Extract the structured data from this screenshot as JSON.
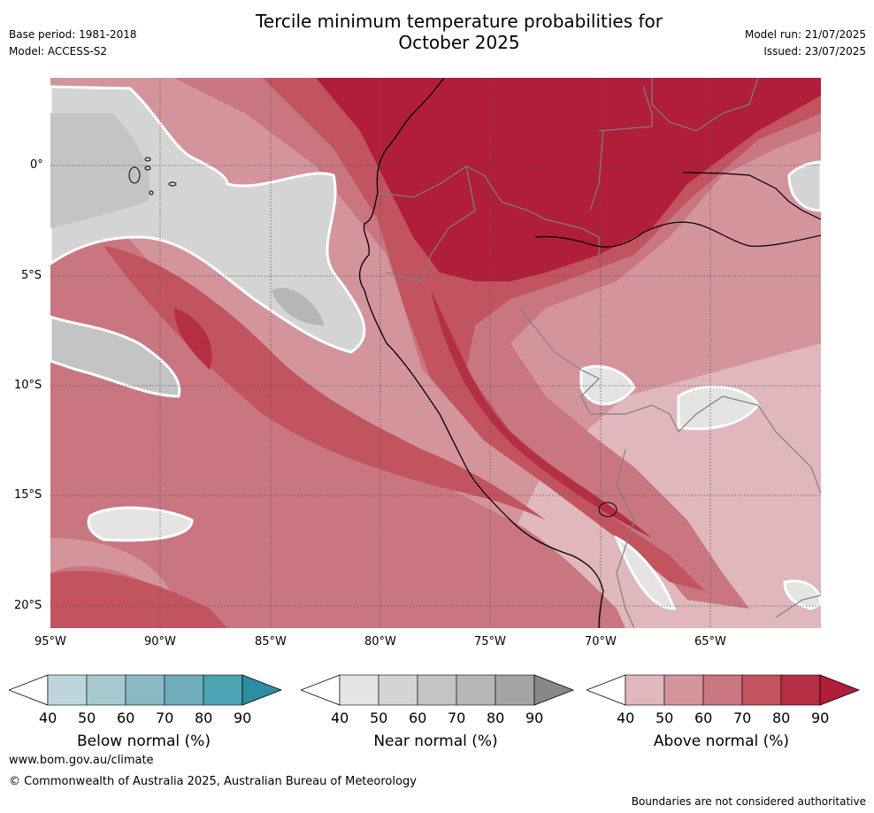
{
  "header": {
    "title_line1": "Tercile minimum temperature probabilities for",
    "title_line2": "October 2025",
    "base_period": "Base period: 1981-2018",
    "model": "Model: ACCESS-S2",
    "model_run": "Model run: 21/07/2025",
    "issued": "Issued: 23/07/2025"
  },
  "map": {
    "lon_ticks": [
      "95°W",
      "90°W",
      "85°W",
      "80°W",
      "75°W",
      "70°W",
      "65°W"
    ],
    "lat_ticks": [
      "0°",
      "5°S",
      "10°S",
      "15°S",
      "20°S"
    ],
    "colors": {
      "ocean_base": "#dbb6bc",
      "grid": "#555555",
      "coast": "#000000",
      "border": "#808080"
    }
  },
  "colorbars": [
    {
      "label": "Below normal (%)",
      "ticks": [
        "40",
        "50",
        "60",
        "70",
        "80",
        "90"
      ],
      "colors": [
        "#ffffff",
        "#bed6db",
        "#a8c8cf",
        "#8ab8c4",
        "#6eadb9",
        "#4ea3b2",
        "#2b8fa1"
      ]
    },
    {
      "label": "Near normal (%)",
      "ticks": [
        "40",
        "50",
        "60",
        "70",
        "80",
        "90"
      ],
      "colors": [
        "#ffffff",
        "#e4e4e4",
        "#d4d4d4",
        "#c4c4c4",
        "#b6b6b6",
        "#a4a4a4",
        "#888888"
      ]
    },
    {
      "label": "Above normal (%)",
      "ticks": [
        "40",
        "50",
        "60",
        "70",
        "80",
        "90"
      ],
      "colors": [
        "#ffffff",
        "#dfb7bc",
        "#d4949c",
        "#c97680",
        "#c1545f",
        "#b52f44",
        "#b01e3a"
      ]
    }
  ],
  "footer": {
    "url": "www.bom.gov.au/climate",
    "copyright": "© Commonwealth of Australia 2025, Australian Bureau of Meteorology",
    "disclaimer": "Boundaries are not considered authoritative"
  }
}
